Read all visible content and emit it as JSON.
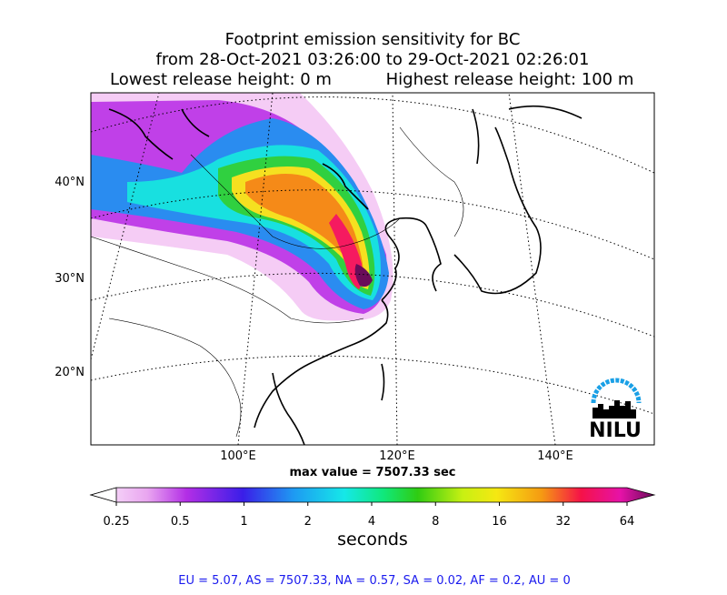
{
  "header": {
    "title": "Footprint emission sensitivity for BC",
    "period": "from 28-Oct-2021 03:26:00 to 29-Oct-2021 02:26:01",
    "lowest_release": "Lowest release height: 0 m",
    "highest_release": "Highest release height: 100 m"
  },
  "map": {
    "lat_labels": [
      "40°N",
      "30°N",
      "20°N"
    ],
    "lon_labels": [
      "100°E",
      "120°E",
      "140°E"
    ],
    "max_value": "max value = 7507.33 sec"
  },
  "logo": {
    "text": "NILU"
  },
  "colorbar": {
    "ticks": [
      "0.25",
      "0.5",
      "1",
      "2",
      "4",
      "8",
      "16",
      "32",
      "64"
    ],
    "label": "seconds"
  },
  "footer": "EU = 5.07,  AS = 7507.33,  NA = 0.57,  SA = 0.02,  AF = 0.2,  AU = 0"
}
